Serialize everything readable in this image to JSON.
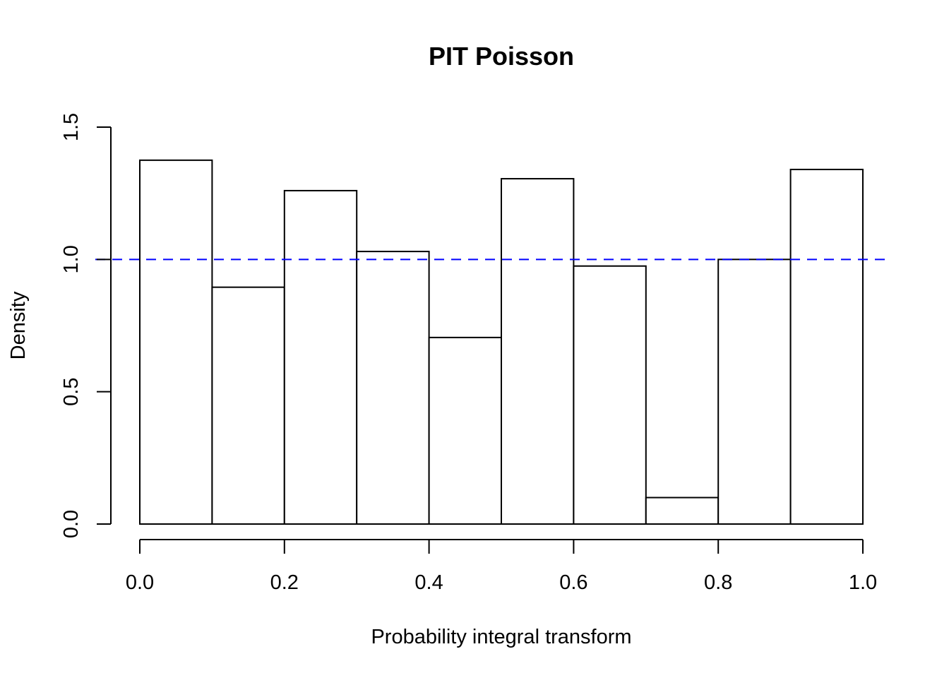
{
  "chart_data": {
    "type": "bar",
    "title": "PIT Poisson",
    "xlabel": "Probability integral transform",
    "ylabel": "Density",
    "bins": [
      {
        "x0": 0.0,
        "x1": 0.1,
        "density": 1.375
      },
      {
        "x0": 0.1,
        "x1": 0.2,
        "density": 0.895
      },
      {
        "x0": 0.2,
        "x1": 0.3,
        "density": 1.26
      },
      {
        "x0": 0.3,
        "x1": 0.4,
        "density": 1.03
      },
      {
        "x0": 0.4,
        "x1": 0.5,
        "density": 0.705
      },
      {
        "x0": 0.5,
        "x1": 0.6,
        "density": 1.305
      },
      {
        "x0": 0.6,
        "x1": 0.7,
        "density": 0.975
      },
      {
        "x0": 0.7,
        "x1": 0.8,
        "density": 0.1
      },
      {
        "x0": 0.8,
        "x1": 0.9,
        "density": 1.0
      },
      {
        "x0": 0.9,
        "x1": 1.0,
        "density": 1.34
      }
    ],
    "xlim": [
      0.0,
      1.0
    ],
    "ylim": [
      0.0,
      1.5
    ],
    "xticks": [
      "0.0",
      "0.2",
      "0.4",
      "0.6",
      "0.8",
      "1.0"
    ],
    "yticks": [
      "0.0",
      "0.5",
      "1.0",
      "1.5"
    ],
    "reference_line": {
      "y": 1.0,
      "color": "#0000ff",
      "style": "dashed"
    },
    "bar_fill": "#ffffff",
    "bar_stroke": "#000000",
    "grid": false
  }
}
